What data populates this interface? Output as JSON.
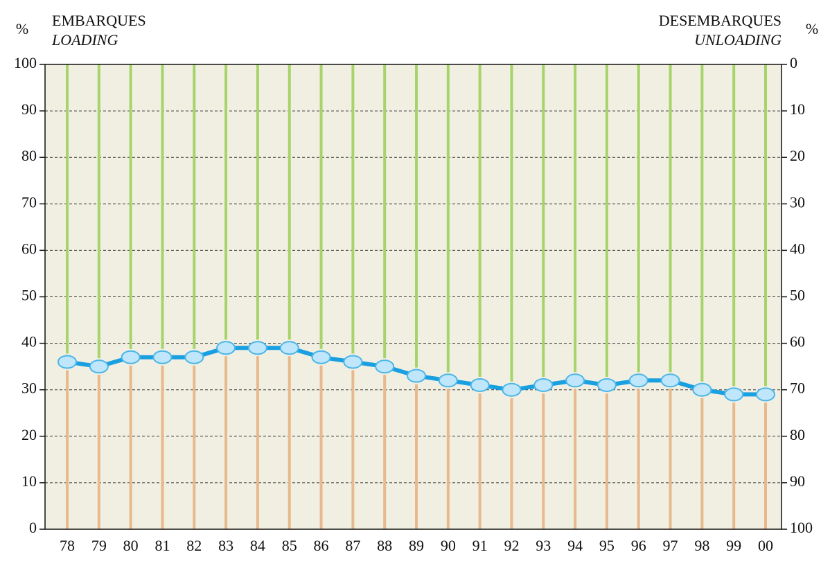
{
  "chart_data": {
    "type": "line",
    "y_label": "%",
    "y2_label": "%",
    "y_title": "EMBARQUES",
    "y_subtitle": "LOADING",
    "y2_title": "DESEMBARQUES",
    "y2_subtitle": "UNLOADING",
    "categories": [
      "78",
      "79",
      "80",
      "81",
      "82",
      "83",
      "84",
      "85",
      "86",
      "87",
      "88",
      "89",
      "90",
      "91",
      "92",
      "93",
      "94",
      "95",
      "96",
      "97",
      "98",
      "99",
      "00"
    ],
    "series": [
      {
        "name": "LOADING",
        "color": "#1aa0e0",
        "values": [
          36,
          35,
          37,
          37,
          37,
          39,
          39,
          39,
          37,
          36,
          35,
          33,
          32,
          31,
          30,
          31,
          32,
          31,
          32,
          32,
          30,
          29,
          29
        ]
      }
    ],
    "ylim": [
      0,
      100
    ],
    "yticks": [
      0,
      10,
      20,
      30,
      40,
      50,
      60,
      70,
      80,
      90,
      100
    ],
    "y2lim": [
      100,
      0
    ],
    "y2ticks": [
      0,
      10,
      20,
      30,
      40,
      50,
      60,
      70,
      80,
      90,
      100
    ],
    "grid": true,
    "background": "#f1efe2",
    "upper_color": "#a6d46a",
    "lower_color": "#e8b98c"
  }
}
